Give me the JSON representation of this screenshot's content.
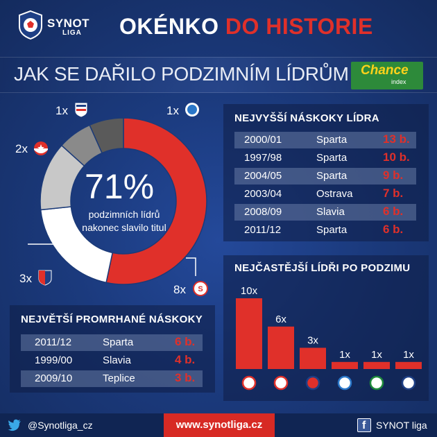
{
  "header": {
    "logo_name": "SYNOT",
    "logo_sub": "LIGA",
    "title_white": "OKÉNKO",
    "title_red": "DO HISTORIE"
  },
  "subtitle": {
    "text": "JAK SE DAŘILO PODZIMNÍM LÍDRŮM",
    "sponsor_name": "Chance",
    "sponsor_sub": "index"
  },
  "donut": {
    "percent": "71%",
    "caption": "podzimních lídrů nakonec slavilo titul",
    "segments": [
      {
        "club": "Sparta",
        "count": 8,
        "label": "8x",
        "color": "#e0302a"
      },
      {
        "club": "Viktoria Plzeň",
        "count": 3,
        "label": "3x",
        "color": "#ffffff"
      },
      {
        "club": "Slavia",
        "count": 2,
        "label": "2x",
        "color": "#c8c8c8"
      },
      {
        "club": "Baník Ostrava",
        "count": 1,
        "label": "1x",
        "color": "#8a8a8a"
      },
      {
        "club": "Slovan Liberec",
        "count": 1,
        "label": "1x",
        "color": "#5a5a5a"
      }
    ]
  },
  "lead_table": {
    "title": "NEJVYŠŠÍ NÁSKOKY LÍDRA",
    "rows": [
      {
        "season": "2000/01",
        "club": "Sparta",
        "pts": "13 b."
      },
      {
        "season": "1997/98",
        "club": "Sparta",
        "pts": "10 b."
      },
      {
        "season": "2004/05",
        "club": "Sparta",
        "pts": "9 b."
      },
      {
        "season": "2003/04",
        "club": "Ostrava",
        "pts": "7 b."
      },
      {
        "season": "2008/09",
        "club": "Slavia",
        "pts": "6 b."
      },
      {
        "season": "2011/12",
        "club": "Sparta",
        "pts": "6 b."
      }
    ]
  },
  "lost_table": {
    "title": "NEJVĚTŠÍ PROMRHANÉ NÁSKOKY",
    "rows": [
      {
        "season": "2011/12",
        "club": "Sparta",
        "pts": "6 b."
      },
      {
        "season": "1999/00",
        "club": "Slavia",
        "pts": "4 b."
      },
      {
        "season": "2009/10",
        "club": "Teplice",
        "pts": "3 b."
      }
    ]
  },
  "chart_data": {
    "type": "bar",
    "title": "NEJČASTĚJŠÍ LÍDŘI PO PODZIMU",
    "categories": [
      "sparta-crest",
      "slavia-crest",
      "plzen-crest",
      "liberec-crest",
      "jablonec-crest",
      "ostrava-crest"
    ],
    "values": [
      10,
      6,
      3,
      1,
      1,
      1
    ],
    "labels": [
      "10x",
      "6x",
      "3x",
      "1x",
      "1x",
      "1x"
    ],
    "bar_color": "#e0302a"
  },
  "footer": {
    "twitter": "@Synotliga_cz",
    "url": "www.synotliga.cz",
    "facebook": "SYNOT liga"
  }
}
